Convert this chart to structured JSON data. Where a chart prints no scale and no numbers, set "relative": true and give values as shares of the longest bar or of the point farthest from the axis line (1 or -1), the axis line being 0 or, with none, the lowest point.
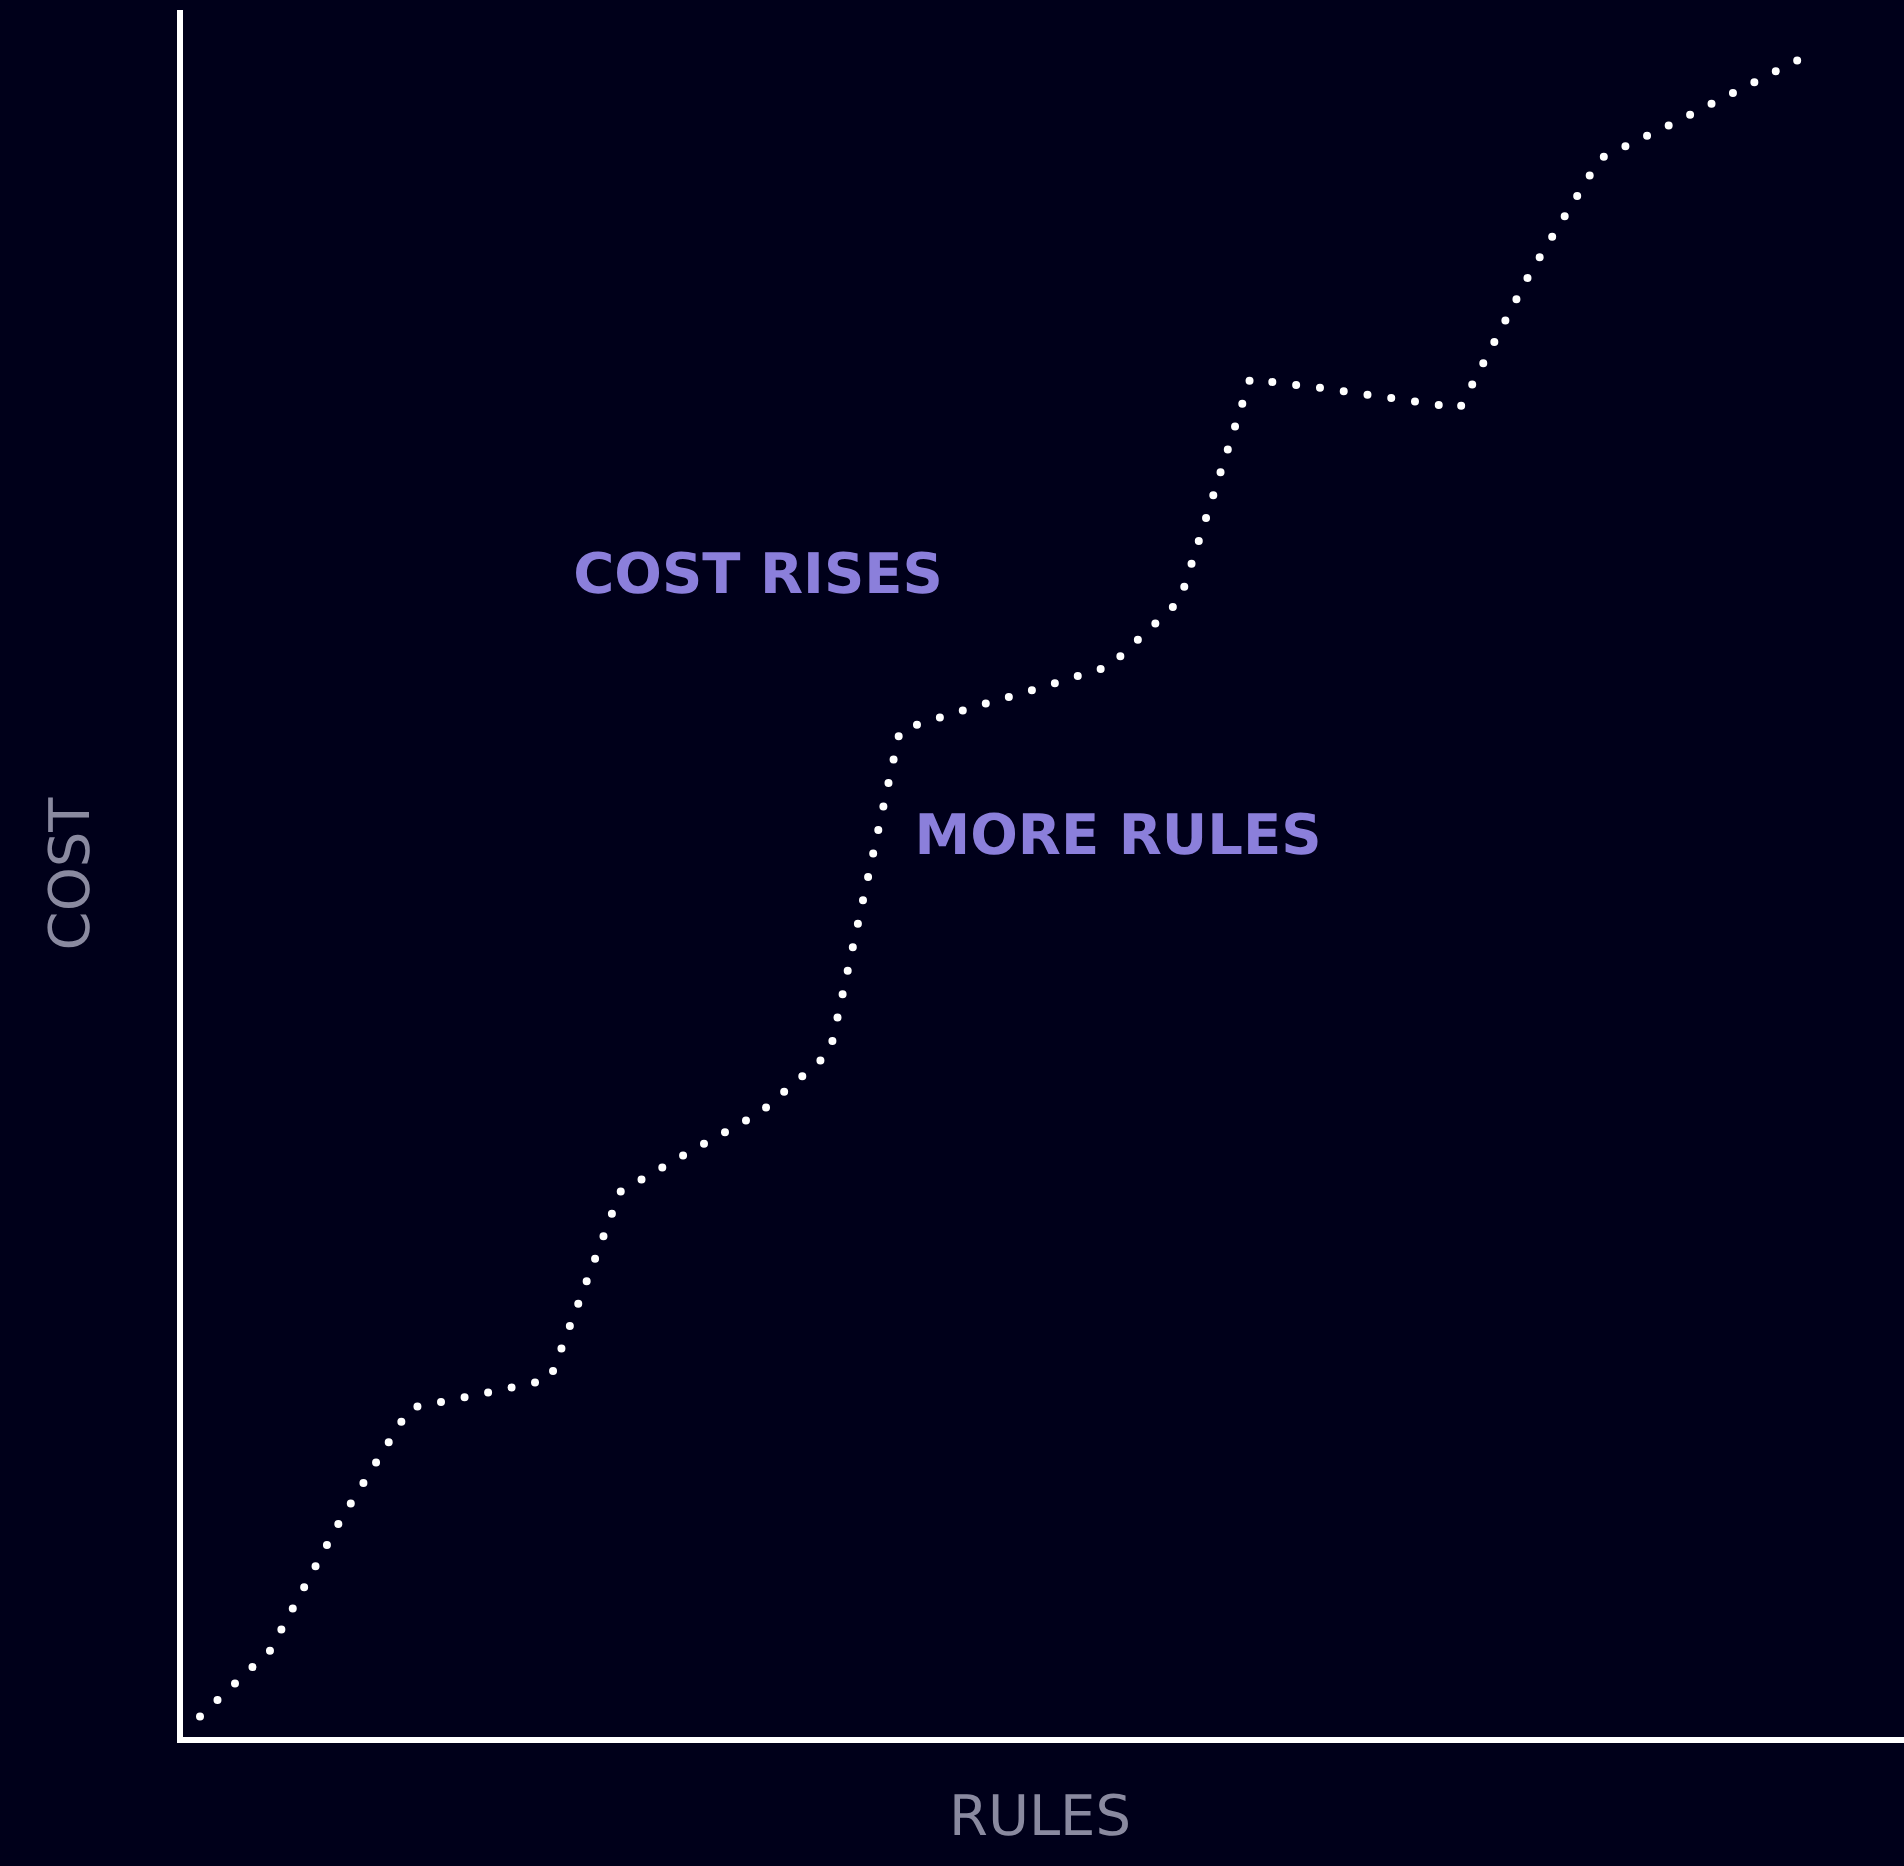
{
  "chart_data": {
    "type": "line",
    "relative": true,
    "xlabel": "RULES",
    "ylabel": "COST",
    "annotations": [
      "COST RISES",
      "MORE RULES"
    ],
    "categories": [
      null,
      null,
      null,
      null,
      null,
      null,
      null,
      null,
      null,
      null,
      null,
      null,
      null,
      null,
      null,
      null,
      null,
      null,
      null,
      null,
      null,
      null,
      null,
      null
    ],
    "series": [
      {
        "color": "#ffffff",
        "values": [
          0.014,
          0.053,
          0.13,
          0.197,
          0.205,
          0.214,
          0.325,
          0.349,
          0.372,
          0.408,
          0.599,
          0.612,
          0.624,
          0.637,
          0.676,
          0.807,
          0.802,
          0.796,
          0.79,
          0.87,
          0.938,
          0.958,
          0.979,
          1
        ]
      }
    ],
    "line_style": "dotted",
    "marker": "none"
  }
}
